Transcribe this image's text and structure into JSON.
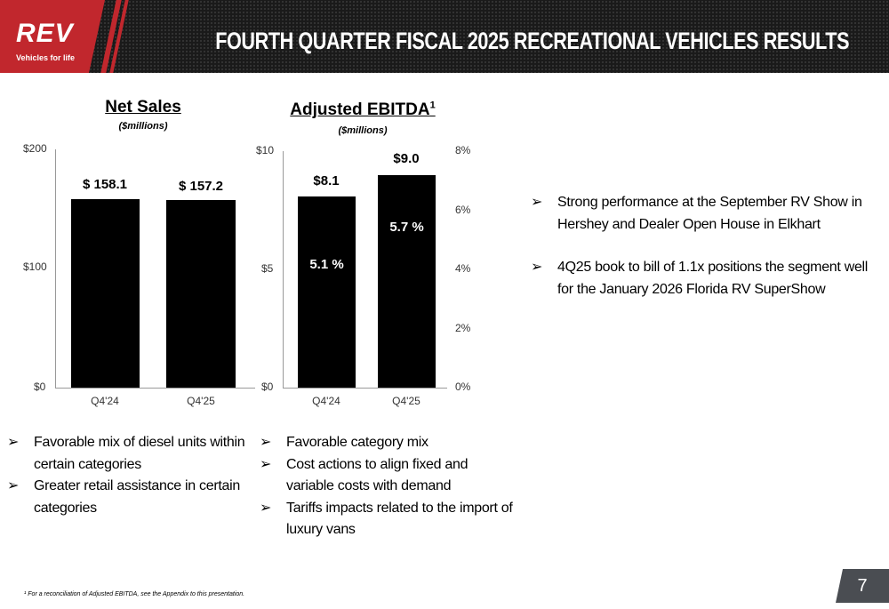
{
  "header": {
    "logo": "REV",
    "tagline": "Vehicles for life",
    "title": "FOURTH QUARTER FISCAL 2025 RECREATIONAL VEHICLES RESULTS"
  },
  "chart_data": [
    {
      "type": "bar",
      "title": "Net Sales",
      "subtitle": "($millions)",
      "categories": [
        "Q4'24",
        "Q4'25"
      ],
      "values": [
        158.1,
        157.2
      ],
      "data_labels": [
        "$ 158.1",
        "$ 157.2"
      ],
      "ylim": [
        0,
        200
      ],
      "yticks": [
        "$0",
        "$100",
        "$200"
      ]
    },
    {
      "type": "bar",
      "title": "Adjusted EBITDA",
      "title_sup": "1",
      "subtitle": "($millions)",
      "categories": [
        "Q4'24",
        "Q4'25"
      ],
      "values": [
        8.1,
        9.0
      ],
      "data_labels": [
        "$8.1",
        "$9.0"
      ],
      "margin_labels": [
        "5.1 %",
        "5.7 %"
      ],
      "margin_values": [
        5.1,
        5.7
      ],
      "ylim": [
        0,
        10
      ],
      "yticks": [
        "$0",
        "$5",
        "$10"
      ],
      "y2lim": [
        0,
        8
      ],
      "y2ticks": [
        "0%",
        "2%",
        "4%",
        "6%",
        "8%"
      ]
    }
  ],
  "net_sales_bullets": [
    "Favorable mix of diesel units within certain categories",
    "Greater retail assistance in certain categories"
  ],
  "ebitda_bullets": [
    "Favorable category mix",
    "Cost actions to align fixed and variable costs with demand",
    "Tariffs impacts related to the import of luxury vans"
  ],
  "right_bullets": [
    "Strong performance at the September RV Show in Hershey and Dealer Open House in Elkhart",
    "4Q25 book to bill of 1.1x positions the segment well for the January 2026 Florida RV SuperShow"
  ],
  "bullet_glyph": "➢",
  "footnote": "¹ For a reconciliation of Adjusted EBITDA, see the Appendix to this presentation.",
  "page_number": "7"
}
